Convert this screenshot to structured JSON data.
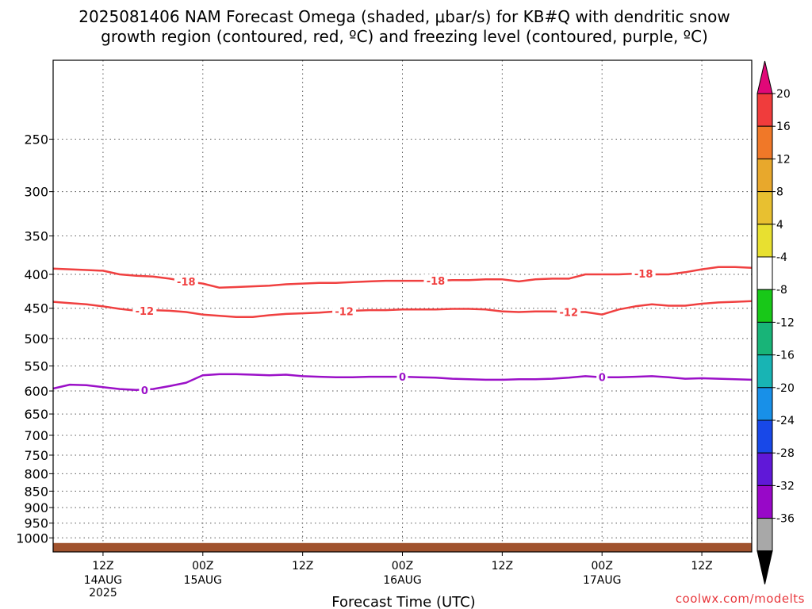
{
  "title": [
    "2025081406 NAM Forecast Omega (shaded, μbar/s) for KB#Q with dendritic snow",
    "growth region (contoured, red, ºC) and freezing level (contoured, purple, ºC)"
  ],
  "credit": "coolwx.com/modelts",
  "chart_data": {
    "type": "contour",
    "title": "2025081406 NAM Forecast Omega (shaded, μbar/s) for KB#Q with dendritic snow growth region (contoured, red, ºC) and freezing level (contoured, purple, ºC)",
    "xlabel": "Forecast Time (UTC)",
    "ylabel": "",
    "x_range_hours": [
      6,
      90
    ],
    "y_scale": "log",
    "y_inverted": true,
    "y_range_mb": [
      1050,
      190
    ],
    "y_ticks": [
      250,
      300,
      350,
      400,
      450,
      500,
      550,
      600,
      650,
      700,
      750,
      800,
      850,
      900,
      950,
      1000
    ],
    "x_ticks": [
      {
        "hour": 12,
        "label": "12Z",
        "sub": [
          "14AUG",
          "2025"
        ]
      },
      {
        "hour": 24,
        "label": "00Z",
        "sub": [
          "15AUG"
        ]
      },
      {
        "hour": 36,
        "label": "12Z",
        "sub": []
      },
      {
        "hour": 48,
        "label": "00Z",
        "sub": [
          "16AUG"
        ]
      },
      {
        "hour": 60,
        "label": "12Z",
        "sub": []
      },
      {
        "hour": 72,
        "label": "00Z",
        "sub": [
          "17AUG"
        ]
      },
      {
        "hour": 84,
        "label": "12Z",
        "sub": []
      }
    ],
    "grid": true,
    "surface_pressure_mb": 1018,
    "surface_color": "#a0522d",
    "series": [
      {
        "name": "-18",
        "color": "#f04040",
        "hours": [
          6,
          8,
          10,
          12,
          14,
          16,
          18,
          20,
          22,
          24,
          26,
          28,
          30,
          32,
          34,
          36,
          38,
          40,
          42,
          44,
          46,
          48,
          50,
          52,
          54,
          56,
          58,
          60,
          62,
          64,
          66,
          68,
          70,
          72,
          74,
          76,
          78,
          80,
          82,
          84,
          86,
          88,
          90
        ],
        "values": [
          392,
          393,
          394,
          395,
          400,
          402,
          403,
          406,
          410,
          413,
          419,
          418,
          417,
          416,
          414,
          413,
          412,
          412,
          411,
          410,
          409,
          409,
          409,
          409,
          408,
          408,
          407,
          407,
          410,
          407,
          406,
          406,
          400,
          400,
          400,
          399,
          400,
          400,
          397,
          393,
          390,
          390,
          391
        ],
        "labels": [
          {
            "hour": 22,
            "text": "-18"
          },
          {
            "hour": 52,
            "text": "-18"
          },
          {
            "hour": 77,
            "text": "-18"
          }
        ]
      },
      {
        "name": "-12",
        "color": "#f04040",
        "hours": [
          6,
          8,
          10,
          12,
          14,
          16,
          18,
          20,
          22,
          24,
          26,
          28,
          30,
          32,
          34,
          36,
          38,
          40,
          42,
          44,
          46,
          48,
          50,
          52,
          54,
          56,
          58,
          60,
          62,
          64,
          66,
          68,
          70,
          72,
          74,
          76,
          78,
          80,
          82,
          84,
          86,
          88,
          90
        ],
        "values": [
          440,
          442,
          444,
          447,
          451,
          454,
          453,
          454,
          456,
          460,
          462,
          464,
          464,
          461,
          459,
          458,
          457,
          455,
          454,
          453,
          453,
          452,
          452,
          452,
          451,
          451,
          452,
          455,
          456,
          455,
          455,
          456,
          456,
          460,
          452,
          447,
          444,
          446,
          446,
          443,
          441,
          440,
          439
        ],
        "labels": [
          {
            "hour": 17,
            "text": "-12"
          },
          {
            "hour": 41,
            "text": "-12"
          },
          {
            "hour": 68,
            "text": "-12"
          }
        ]
      },
      {
        "name": "0",
        "color": "#9b10c8",
        "hours": [
          6,
          8,
          10,
          12,
          14,
          16,
          18,
          20,
          22,
          24,
          26,
          28,
          30,
          32,
          34,
          36,
          38,
          40,
          42,
          44,
          46,
          48,
          50,
          52,
          54,
          56,
          58,
          60,
          62,
          64,
          66,
          68,
          70,
          72,
          74,
          76,
          78,
          80,
          82,
          84,
          86,
          88,
          90
        ],
        "values": [
          595,
          587,
          588,
          592,
          596,
          598,
          596,
          590,
          583,
          568,
          566,
          566,
          567,
          568,
          567,
          570,
          571,
          572,
          572,
          571,
          571,
          571,
          572,
          573,
          575,
          576,
          577,
          577,
          576,
          576,
          575,
          573,
          570,
          572,
          572,
          571,
          570,
          572,
          575,
          574,
          575,
          576,
          577
        ],
        "labels": [
          {
            "hour": 17,
            "text": "0"
          },
          {
            "hour": 48,
            "text": "0"
          },
          {
            "hour": 72,
            "text": "0"
          }
        ]
      }
    ],
    "colorbar": {
      "labels": [
        "20",
        "16",
        "12",
        "8",
        "4",
        "-4",
        "-8",
        "-12",
        "-16",
        "-20",
        "-24",
        "-28",
        "-32",
        "-36"
      ],
      "colors": [
        "#f03c3c",
        "#f07828",
        "#e8a82c",
        "#e8c030",
        "#e8e030",
        "#ffffff",
        "#18c818",
        "#18b478",
        "#18b4b4",
        "#1890e8",
        "#1848e8",
        "#6018d8",
        "#9808c8",
        "#a8a8a8"
      ],
      "top_arrow_color": "#e00878",
      "bottom_arrow_color": "#000000"
    }
  }
}
